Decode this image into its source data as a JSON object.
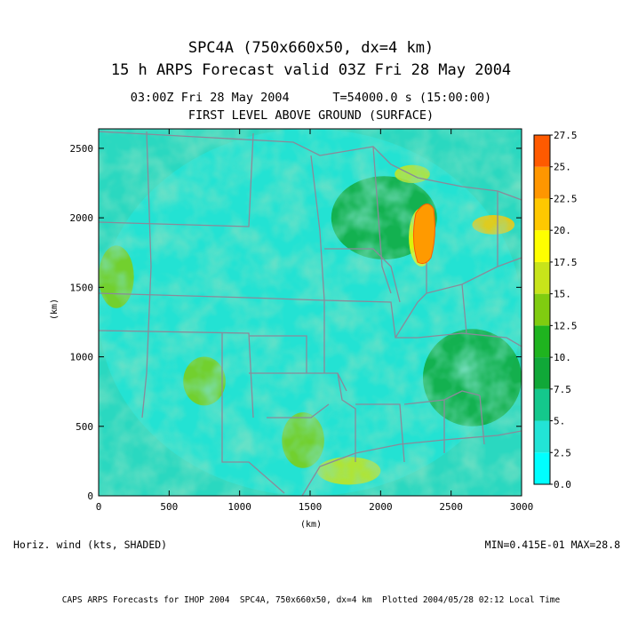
{
  "header": {
    "title_line1": "SPC4A (750x660x50, dx=4 km)",
    "title_line2": "15 h ARPS Forecast valid 03Z Fri 28 May 2004",
    "time_line": "03:00Z Fri 28 May 2004      T=54000.0 s (15:00:00)",
    "level_line": "FIRST LEVEL ABOVE GROUND (SURFACE)"
  },
  "footer": {
    "variable_label": "Horiz. wind (kts, SHADED)",
    "minmax": "MIN=0.415E-01 MAX=28.8",
    "credits": "CAPS ARPS Forecasts for IHOP 2004  SPC4A, 750x660x50, dx=4 km  Plotted 2004/05/28 02:12 Local Time"
  },
  "chart_data": {
    "type": "heatmap",
    "title": "SPC4A (750x660x50, dx=4 km)",
    "xlabel": "(km)",
    "ylabel": "(km)",
    "xlim": [
      0,
      3000
    ],
    "ylim": [
      0,
      2640
    ],
    "x_ticks": [
      0,
      500,
      1000,
      1500,
      2000,
      2500,
      3000
    ],
    "x_tick_labels": [
      "0",
      "500",
      "1000",
      "1500",
      "2000",
      "2500",
      "3000"
    ],
    "y_ticks": [
      0,
      500,
      1000,
      1500,
      2000,
      2500
    ],
    "y_tick_labels": [
      "0",
      "500",
      "1000",
      "1500",
      "2000",
      "2500"
    ],
    "variable": "Horiz. wind (kts, SHADED)",
    "min": 0.0415,
    "max": 28.8,
    "colorbar": {
      "levels": [
        0.0,
        2.5,
        5.0,
        7.5,
        10.0,
        12.5,
        15.0,
        17.5,
        20.0,
        22.5,
        25.0,
        27.5
      ],
      "labels": [
        "0.0",
        "2.5",
        "5.",
        "7.5",
        "10.",
        "12.5",
        "15.",
        "17.5",
        "20.",
        "22.5",
        "25.",
        "27.5"
      ],
      "colors": [
        "#00ffff",
        "#22e4d6",
        "#14c88c",
        "#10a838",
        "#1fb41f",
        "#80cc10",
        "#c8e41a",
        "#ffff00",
        "#ffc800",
        "#ff9600",
        "#ff5a00",
        "#ff1e00"
      ]
    },
    "regions": [
      {
        "x": [
          2200,
          2380
        ],
        "y": [
          1650,
          2070
        ],
        "value": 17.5
      },
      {
        "x": [
          2650,
          2950
        ],
        "y": [
          1880,
          2020
        ],
        "value": 21.0
      },
      {
        "x": [
          2100,
          2350
        ],
        "y": [
          2250,
          2380
        ],
        "value": 15.0
      },
      {
        "x": [
          1550,
          2000
        ],
        "y": [
          80,
          280
        ],
        "value": 15.0
      },
      {
        "x": [
          1300,
          1600
        ],
        "y": [
          200,
          600
        ],
        "value": 12.5
      },
      {
        "x": [
          600,
          900
        ],
        "y": [
          650,
          1000
        ],
        "value": 12.5
      },
      {
        "x": [
          0,
          250
        ],
        "y": [
          1350,
          1800
        ],
        "value": 12.5
      },
      {
        "x": [
          2300,
          3000
        ],
        "y": [
          500,
          1200
        ],
        "value": 7.5
      },
      {
        "x": [
          1650,
          2400
        ],
        "y": [
          1700,
          2300
        ],
        "value": 7.5
      },
      {
        "x": [
          0,
          3000
        ],
        "y": [
          0,
          2640
        ],
        "value": 4.0
      }
    ]
  }
}
